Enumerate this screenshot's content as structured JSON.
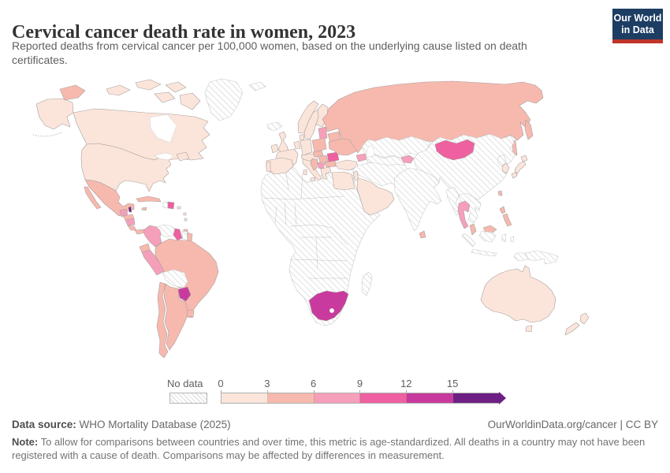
{
  "header": {
    "title": "Cervical cancer death rate in women, 2023",
    "subtitle": "Reported deaths from cervical cancer per 100,000 women, based on the underlying cause listed on death certificates.",
    "logo": {
      "line1": "Our World",
      "line2": "in Data"
    }
  },
  "legend": {
    "no_data_label": "No data",
    "tick_labels": [
      "0",
      "3",
      "6",
      "9",
      "12",
      "15"
    ]
  },
  "footer": {
    "source_label": "Data source:",
    "source_text": " WHO Mortality Database (2025)",
    "credit": "OurWorldinData.org/cancer | CC BY",
    "note_label": "Note:",
    "note_text": " To allow for comparisons between countries and over time, this metric is age-standardized. All deaths in a country may not have been registered with a cause of death. Comparisons may be affected by differences in measurement."
  },
  "colors": {
    "logo_navy": "#1d3d63",
    "logo_red": "#c0342a",
    "title_text": "#333333",
    "body_text": "#5f5f5f",
    "note_text": "#737373",
    "country_border": "#a89f9f",
    "nodata_border": "#c9c9c9",
    "hatch_line": "#d9d9d9"
  },
  "chart_data": {
    "type": "choropleth",
    "title": "Cervical cancer death rate in women, 2023",
    "unit": "reported deaths from cervical cancer per 100,000 women",
    "year": 2023,
    "legend_thresholds": [
      0,
      3,
      6,
      9,
      12,
      15
    ],
    "bins": [
      {
        "range": "0-3",
        "color": "#fbe5da"
      },
      {
        "range": "3-6",
        "color": "#f7b9ae"
      },
      {
        "range": "6-9",
        "color": "#f59fba"
      },
      {
        "range": "9-12",
        "color": "#ee609f"
      },
      {
        "range": "12-15",
        "color": "#c93a9e"
      },
      {
        "range": "15+",
        "color": "#6d1f84"
      },
      {
        "range": "no-data",
        "color": "hatched"
      }
    ],
    "regions": {
      "canada": "0-3",
      "usa": "0-3",
      "greenland": "no-data",
      "svalbard": "no-data",
      "iceland": "no-data",
      "mexico": "3-6",
      "belize": "15+",
      "guatemala": "6-9",
      "honduras": "3-6",
      "nicaragua": "6-9",
      "costa-rica": "3-6",
      "panama": "3-6",
      "cuba": "3-6",
      "jamaica": "3-6",
      "haiti": "no-data",
      "dominican-republic": "9-12",
      "puerto-rico": "0-3",
      "lesser-antilles": "0-3",
      "trinidad-and-tobago": "3-6",
      "colombia": "6-9",
      "venezuela": "no-data",
      "guyana": "9-12",
      "suriname": "no-data",
      "french-guiana": "3-6",
      "ecuador": "3-6",
      "peru": "6-9",
      "brazil": "3-6",
      "bolivia": "no-data",
      "paraguay": "12-15",
      "chile": "3-6",
      "argentina": "3-6",
      "uruguay": "3-6",
      "ireland": "0-3",
      "united-kingdom": "0-3",
      "norway": "0-3",
      "sweden": "0-3",
      "finland": "0-3",
      "denmark": "0-3",
      "germany": "0-3",
      "benelux": "0-3",
      "france": "0-3",
      "spain": "0-3",
      "portugal": "0-3",
      "italy": "0-3",
      "alpine-states": "0-3",
      "czechia": "3-6",
      "poland": "3-6",
      "baltic-states": "6-9",
      "belarus": "3-6",
      "ukraine": "3-6",
      "hungary-slovakia": "3-6",
      "romania": "9-12",
      "balkans-west": "3-6",
      "serbia": "6-9",
      "bulgaria": "3-6",
      "greece": "0-3",
      "turkey": "0-3",
      "caucasus": "6-9",
      "russia": "3-6",
      "kazakhstan": "no-data",
      "central-asia": "no-data",
      "kyrgyzstan": "6-9",
      "middle-east": "no-data",
      "levant": "0-3",
      "arabian-peninsula": "0-3",
      "south-asia": "no-data",
      "sri-lanka": "3-6",
      "china": "no-data",
      "mongolia": "9-12",
      "north-korea": "no-data",
      "south-korea": "0-3",
      "japan": "0-3",
      "taiwan": "3-6",
      "myanmar": "no-data",
      "indochina": "no-data",
      "thailand": "6-9",
      "malaysia": "3-6",
      "philippines": "3-6",
      "indonesia": "no-data",
      "papua-new-guinea": "no-data",
      "australia": "0-3",
      "new-zealand": "0-3",
      "africa": "no-data",
      "egypt": "0-3",
      "south-africa": "12-15",
      "madagascar": "no-data"
    }
  }
}
